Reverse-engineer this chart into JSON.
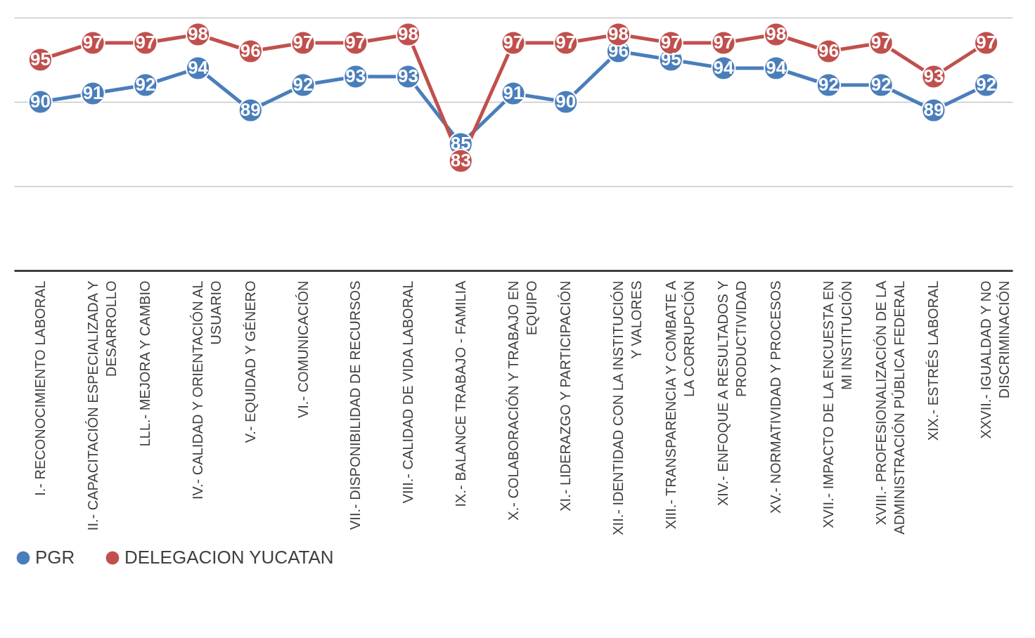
{
  "chart_data": {
    "type": "line",
    "categories": [
      "I.- RECONOCIMIENTO LABORAL",
      "II.- CAPACITACIÓN ESPECIALIZADA Y DESARROLLO",
      "LLL.- MEJORA Y CAMBIO",
      "IV.- CALIDAD Y ORIENTACIÓN AL USUARIO",
      "V.- EQUIDAD Y GÉNERO",
      "VI.- COMUNICACIÓN",
      "VII.- DISPONIBILIDAD DE RECURSOS",
      "VIII.- CALIDAD DE VIDA LABORAL",
      "IX.- BALANCE TRABAJO - FAMILIA",
      "X.- COLABORACIÓN Y TRABAJO EN EQUIPO",
      "XI.- LIDERAZGO Y PARTICIPACIÓN",
      "XII.- IDENTIDAD CON LA INSTITUCIÓN Y VALORES",
      "XIII.- TRANSPARENCIA Y COMBATE A LA CORRUPCIÓN",
      "XIV.- ENFOQUE A RESULTADOS Y PRODUCTIVIDAD",
      "XV.- NORMATIVIDAD Y PROCESOS",
      "XVII.- IMPACTO DE LA ENCUESTA EN MI INSTITUCIÓN",
      "XVIII.- PROFESIONALIZACIÓN DE LA ADMINISTRACIÓN PÚBLICA FEDERAL",
      "XIX.- ESTRÉS LABORAL",
      "XXVII.- IGUALDAD Y NO DISCRIMINACIÓN"
    ],
    "series": [
      {
        "name": "PGR",
        "color": "#4a7ebb",
        "values": [
          90,
          91,
          92,
          94,
          89,
          92,
          93,
          93,
          85,
          91,
          90,
          96,
          95,
          94,
          94,
          92,
          92,
          89,
          92
        ]
      },
      {
        "name": "DELEGACION YUCATAN",
        "color": "#c0504d",
        "values": [
          95,
          97,
          97,
          98,
          96,
          97,
          97,
          98,
          83,
          97,
          97,
          98,
          97,
          97,
          98,
          96,
          97,
          93,
          97
        ]
      }
    ],
    "ylim": [
      70,
      100
    ],
    "yticks": [
      {
        "value": 70,
        "label": null
      },
      {
        "value": 80,
        "label": null
      },
      {
        "value": 90,
        "label": null
      },
      {
        "value": 100,
        "label": null
      }
    ],
    "tick_labels": "x",
    "grid": "y",
    "legend": "bottom",
    "marker": "circle",
    "line_style": "solid",
    "data_labels": true
  }
}
